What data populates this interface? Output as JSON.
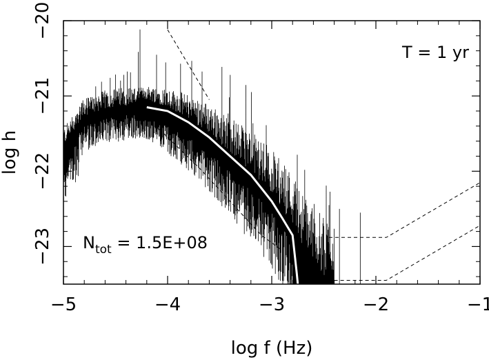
{
  "chart_data": {
    "type": "line",
    "title": "",
    "xlabel": "log f (Hz)",
    "ylabel": "log h",
    "xlim": [
      -5,
      -1
    ],
    "ylim": [
      -23.5,
      -20
    ],
    "x_ticks": [
      "−5",
      "−4",
      "−3",
      "−2",
      "−1"
    ],
    "y_ticks": [
      "−20",
      "−21",
      "−22",
      "−23"
    ],
    "annotations": {
      "T": "T = 1 yr",
      "ntot_prefix": "N",
      "ntot_sub": "tot",
      "ntot_value": " = 1.5E+08"
    },
    "series": [
      {
        "style": "noisy-spectrum",
        "color": "#000000",
        "x": [
          -5.0,
          -4.8,
          -4.6,
          -4.4,
          -4.2,
          -4.0,
          -3.8,
          -3.6,
          -3.4,
          -3.2,
          -3.0,
          -2.9,
          -2.8,
          -2.7,
          -2.6,
          -2.5,
          -2.4
        ],
        "y": [
          -21.7,
          -21.3,
          -21.2,
          -21.15,
          -21.15,
          -21.25,
          -21.4,
          -21.6,
          -21.85,
          -22.1,
          -22.4,
          -22.6,
          -22.8,
          -23.1,
          -23.3,
          -23.5,
          -23.5
        ]
      },
      {
        "style": "smooth",
        "color": "#ffffff",
        "x": [
          -4.2,
          -4.0,
          -3.8,
          -3.6,
          -3.4,
          -3.2,
          -3.0,
          -2.9,
          -2.8,
          -2.78,
          -2.76,
          -2.75
        ],
        "y": [
          -21.15,
          -21.2,
          -21.35,
          -21.55,
          -21.8,
          -22.05,
          -22.4,
          -22.62,
          -22.85,
          -23.1,
          -23.35,
          -23.5
        ]
      },
      {
        "style": "dashed",
        "color": "#000000",
        "x": [
          -4.0,
          -3.6
        ],
        "y": [
          -20.12,
          -21.05
        ]
      },
      {
        "style": "dashed",
        "color": "#000000",
        "x": [
          -4.25,
          -4.0,
          -3.7,
          -3.4,
          -3.1,
          -2.9
        ],
        "y": [
          -21.2,
          -21.55,
          -21.95,
          -22.4,
          -22.85,
          -23.05
        ]
      },
      {
        "style": "dashed",
        "color": "#000000",
        "x": [
          -2.45,
          -1.9,
          -1.0
        ],
        "y": [
          -22.88,
          -22.88,
          -22.15
        ]
      },
      {
        "style": "dashed",
        "color": "#000000",
        "x": [
          -2.4,
          -1.9,
          -1.0
        ],
        "y": [
          -23.45,
          -23.45,
          -22.72
        ]
      }
    ]
  }
}
